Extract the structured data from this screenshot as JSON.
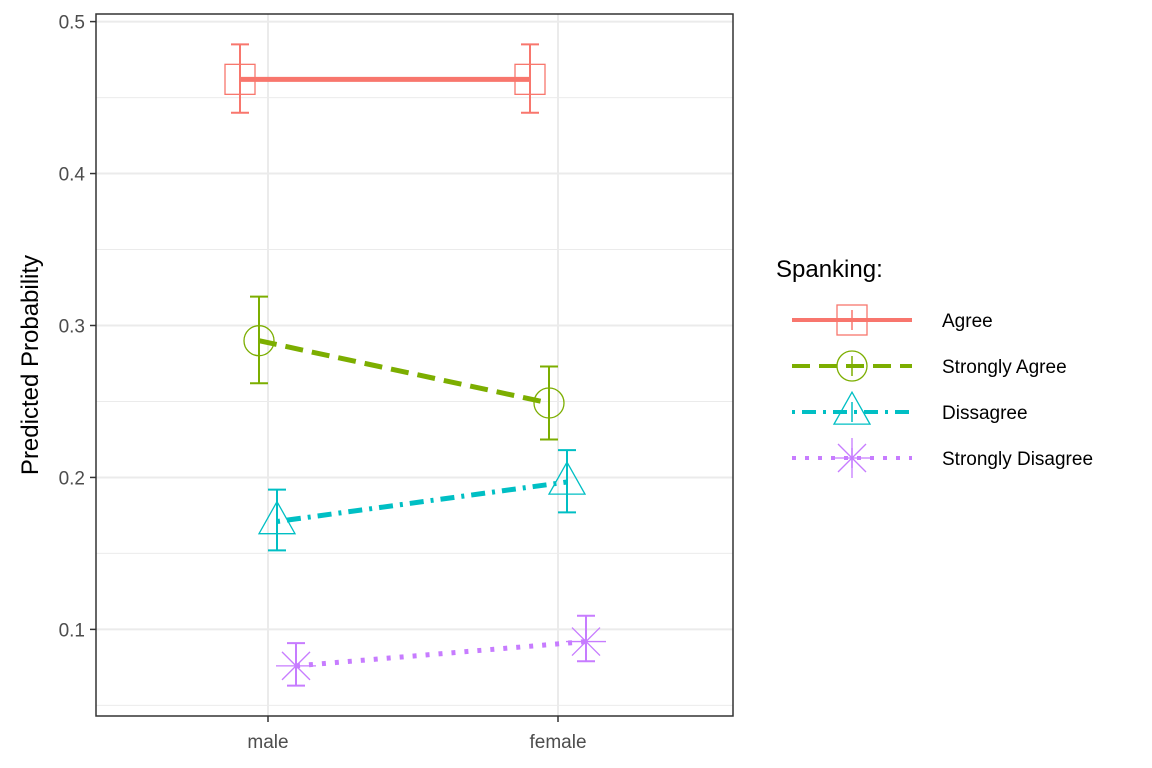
{
  "chart_data": {
    "type": "line",
    "title": "",
    "xlabel": "",
    "ylabel": "Predicted Probability",
    "categories": [
      "male",
      "female"
    ],
    "y_ticks": [
      "0.1",
      "0.2",
      "0.3",
      "0.4",
      "0.5"
    ],
    "ylim": [
      0.043,
      0.505
    ],
    "grid": true,
    "legend": {
      "title": "Spanking:",
      "position": "right"
    },
    "series": [
      {
        "name": "Agree",
        "color": "#F8766D",
        "line_style": "solid",
        "shape": "square",
        "values": [
          0.462,
          0.462
        ],
        "lower": [
          0.44,
          0.44
        ],
        "upper": [
          0.485,
          0.485
        ]
      },
      {
        "name": "Strongly Agree",
        "color": "#7CAE00",
        "line_style": "dashed",
        "shape": "circle",
        "values": [
          0.29,
          0.249
        ],
        "lower": [
          0.262,
          0.225
        ],
        "upper": [
          0.319,
          0.273
        ]
      },
      {
        "name": "Dissagree",
        "color": "#00BFC4",
        "line_style": "dotdash",
        "shape": "triangle",
        "values": [
          0.171,
          0.197
        ],
        "lower": [
          0.152,
          0.177
        ],
        "upper": [
          0.192,
          0.218
        ]
      },
      {
        "name": "Strongly Disagree",
        "color": "#C77CFF",
        "line_style": "dotted",
        "shape": "asterisk",
        "values": [
          0.076,
          0.092
        ],
        "lower": [
          0.063,
          0.079
        ],
        "upper": [
          0.091,
          0.109
        ]
      }
    ]
  }
}
